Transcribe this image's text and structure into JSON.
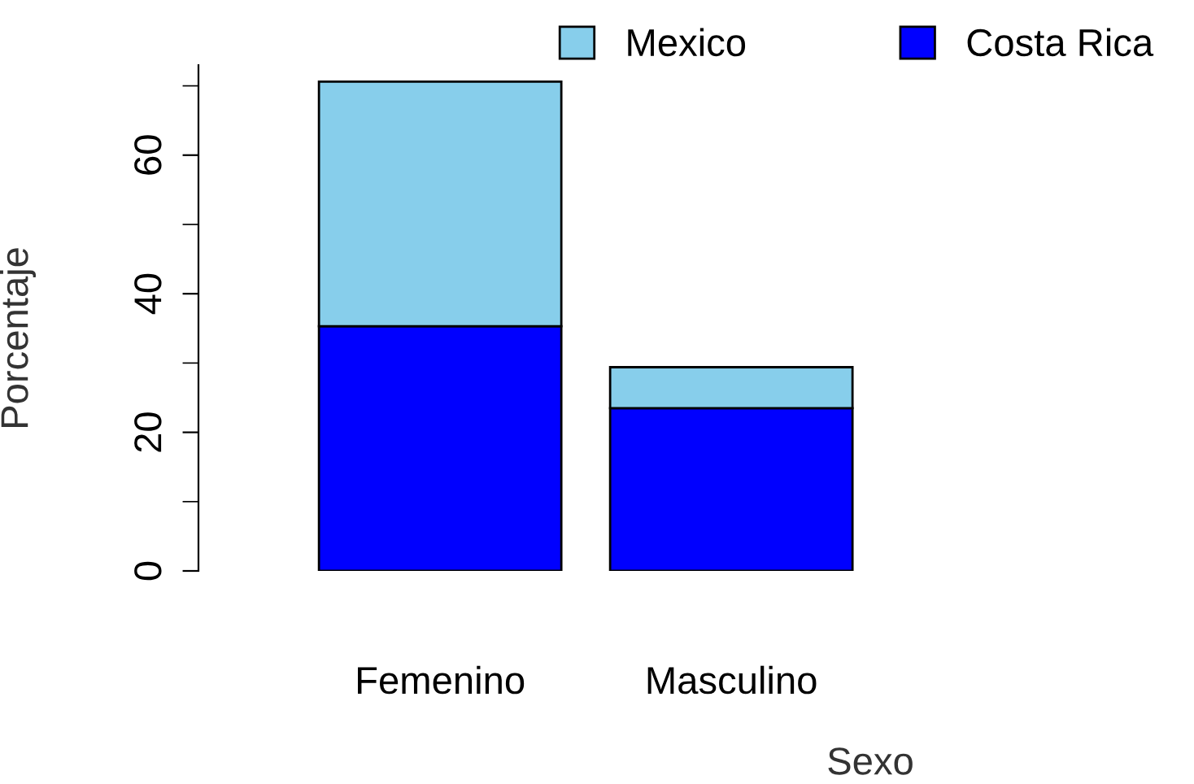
{
  "chart_data": {
    "type": "bar",
    "stacked": true,
    "xlabel": "Sexo",
    "ylabel": "Porcentaje",
    "categories": [
      "Femenino",
      "Masculino"
    ],
    "series": [
      {
        "name": "Costa Rica",
        "color": "#0000ff",
        "values": [
          35.3,
          23.5
        ]
      },
      {
        "name": "Mexico",
        "color": "#87ceeb",
        "values": [
          35.3,
          5.9
        ]
      }
    ],
    "ylim": [
      0,
      73
    ],
    "yticks": [
      0,
      20,
      40,
      60
    ],
    "grid": false,
    "legend": "top right"
  }
}
